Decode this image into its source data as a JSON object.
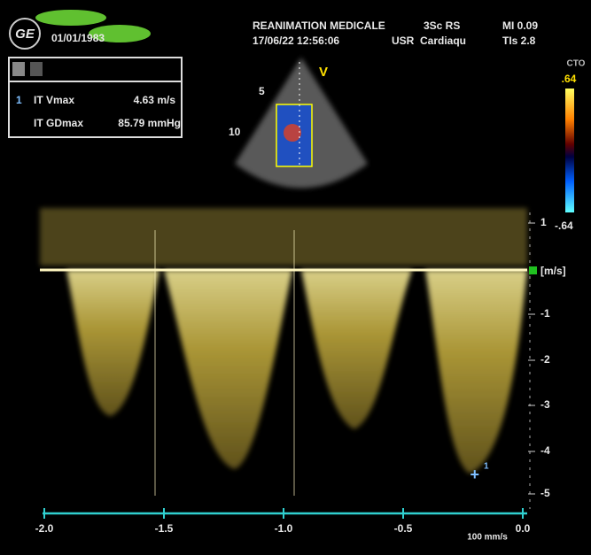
{
  "header": {
    "logo": "GE",
    "date": "01/01/1983",
    "institution": "REANIMATION MEDICALE",
    "datetime": "17/06/22 12:56:06",
    "probe": "3Sc RS",
    "user": "USR",
    "preset": "Cardiaqu",
    "mi": "MI 0.09",
    "tis": "TIs 2.8"
  },
  "measurements": {
    "index": "1",
    "rows": [
      {
        "label": "IT Vmax",
        "value": "4.63 m/s"
      },
      {
        "label": "IT GDmax",
        "value": "85.79 mmHg"
      }
    ]
  },
  "color_scale": {
    "title": "CTO",
    "top": ".64",
    "bottom": "-.64"
  },
  "sector": {
    "marks": [
      "5",
      "10"
    ],
    "label": "V"
  },
  "velocity_scale": {
    "unit": "[m/s]",
    "ticks": [
      "1",
      "-1",
      "-2",
      "-3",
      "-4",
      "-5"
    ]
  },
  "time_axis": {
    "ticks": [
      "-2.0",
      "-1.5",
      "-1.0",
      "-0.5",
      "0.0"
    ],
    "sweep": "100 mm/s"
  },
  "cursor_label": "1"
}
